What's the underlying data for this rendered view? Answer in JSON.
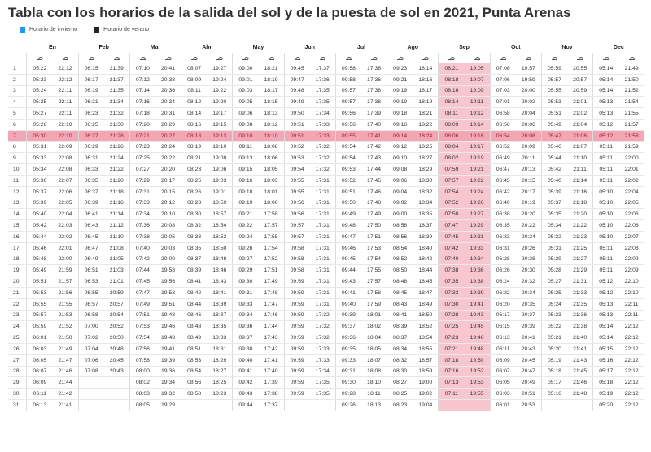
{
  "title": "Tabla con los horarios de la salida del sol y de la puesta de sol en 2021, Punta Arenas",
  "legend": [
    {
      "label": "Horario de invierno",
      "color": "#2196f3"
    },
    {
      "label": "Horario de verano",
      "color": "#222222"
    }
  ],
  "icons": {
    "sunrise": "sunrise-icon",
    "sunset": "sunset-icon"
  },
  "highlight_color": "#f7c6cf",
  "highlight_row_color": "#f3a6b3",
  "highlight_column": "Sep",
  "current_day": 7,
  "months": [
    "En",
    "Feb",
    "Mar",
    "Abr",
    "May",
    "Jun",
    "Jul",
    "Ago",
    "Sep",
    "Oct",
    "Nov",
    "Dec"
  ],
  "rows": [
    [
      "1",
      "05:22",
      "22:12",
      "06:15",
      "21:39",
      "07:10",
      "20:41",
      "08:07",
      "19:27",
      "09:00",
      "18:21",
      "09:45",
      "17:37",
      "09:58",
      "17:36",
      "09:23",
      "18:14",
      "08:21",
      "19:05",
      "07:08",
      "19:57",
      "05:59",
      "20:55",
      "05:14",
      "21:49"
    ],
    [
      "2",
      "05:23",
      "22:12",
      "06:17",
      "21:37",
      "07:12",
      "20:38",
      "08:09",
      "19:24",
      "09:01",
      "18:19",
      "09:47",
      "17:36",
      "09:58",
      "17:36",
      "09:21",
      "18:16",
      "08:18",
      "19:07",
      "07:06",
      "19:59",
      "05:57",
      "20:57",
      "05:14",
      "21:50"
    ],
    [
      "3",
      "05:24",
      "22:11",
      "06:19",
      "21:35",
      "07:14",
      "20:36",
      "08:11",
      "19:22",
      "09:03",
      "18:17",
      "09:48",
      "17:35",
      "09:57",
      "17:38",
      "09:19",
      "18:17",
      "08:16",
      "19:09",
      "07:03",
      "20:00",
      "05:55",
      "20:59",
      "05:14",
      "21:52"
    ],
    [
      "4",
      "05:25",
      "22:11",
      "06:21",
      "21:34",
      "07:16",
      "20:34",
      "08:12",
      "19:20",
      "09:05",
      "18:15",
      "09:49",
      "17:35",
      "09:57",
      "17:38",
      "09:19",
      "18:19",
      "08:14",
      "19:11",
      "07:01",
      "20:02",
      "05:53",
      "21:01",
      "05:13",
      "21:54"
    ],
    [
      "5",
      "05:27",
      "22:11",
      "06:23",
      "21:32",
      "07:18",
      "20:31",
      "08:14",
      "19:17",
      "09:06",
      "18:13",
      "09:50",
      "17:34",
      "09:56",
      "17:39",
      "09:18",
      "18:21",
      "08:11",
      "19:12",
      "06:58",
      "20:04",
      "05:51",
      "21:02",
      "05:13",
      "21:55"
    ],
    [
      "6",
      "05:28",
      "22:10",
      "06:25",
      "21:30",
      "07:20",
      "20:29",
      "08:16",
      "19:15",
      "09:08",
      "18:12",
      "09:51",
      "17:33",
      "09:56",
      "17:40",
      "09:16",
      "18:22",
      "08:09",
      "19:14",
      "06:56",
      "20:06",
      "05:49",
      "21:04",
      "05:12",
      "21:57"
    ],
    [
      "7",
      "05:30",
      "22:10",
      "06:27",
      "21:28",
      "07:21",
      "20:27",
      "08:18",
      "19:13",
      "09:10",
      "18:10",
      "09:51",
      "17:33",
      "09:55",
      "17:41",
      "09:14",
      "18:24",
      "08:06",
      "19:16",
      "06:54",
      "20:08",
      "05:47",
      "21:06",
      "05:12",
      "21:58"
    ],
    [
      "8",
      "05:31",
      "22:09",
      "06:29",
      "21:26",
      "07:23",
      "20:24",
      "08:19",
      "19:10",
      "09:11",
      "18:08",
      "09:52",
      "17:32",
      "09:54",
      "17:42",
      "09:12",
      "18:25",
      "08:04",
      "19:17",
      "06:52",
      "20:09",
      "05:46",
      "21:07",
      "05:11",
      "21:59"
    ],
    [
      "9",
      "05:33",
      "22:08",
      "06:31",
      "21:24",
      "07:25",
      "20:22",
      "08:21",
      "19:08",
      "09:13",
      "18:06",
      "09:53",
      "17:32",
      "09:54",
      "17:43",
      "09:10",
      "18:27",
      "08:02",
      "19:19",
      "06:49",
      "20:11",
      "05:44",
      "21:10",
      "05:11",
      "22:00"
    ],
    [
      "10",
      "05:34",
      "22:08",
      "06:33",
      "21:22",
      "07:27",
      "20:20",
      "08:23",
      "19:06",
      "09:15",
      "18:05",
      "09:54",
      "17:32",
      "09:53",
      "17:44",
      "09:08",
      "18:29",
      "07:59",
      "19:21",
      "06:47",
      "20:13",
      "05:42",
      "21:11",
      "05:11",
      "22:01"
    ],
    [
      "11",
      "05:36",
      "22:07",
      "06:35",
      "21:20",
      "07:29",
      "20:17",
      "08:25",
      "19:03",
      "09:16",
      "18:03",
      "09:55",
      "17:31",
      "09:52",
      "17:45",
      "09:06",
      "18:30",
      "07:57",
      "19:22",
      "06:45",
      "20:15",
      "05:40",
      "21:14",
      "05:11",
      "22:02"
    ],
    [
      "12",
      "05:37",
      "22:06",
      "06:37",
      "21:18",
      "07:31",
      "20:15",
      "08:26",
      "19:01",
      "09:18",
      "18:01",
      "09:55",
      "17:31",
      "09:51",
      "17:46",
      "09:04",
      "18:32",
      "07:54",
      "19:24",
      "06:42",
      "20:17",
      "05:39",
      "21:16",
      "05:10",
      "22:04"
    ],
    [
      "13",
      "05:39",
      "22:05",
      "06:39",
      "21:16",
      "07:33",
      "20:12",
      "08:28",
      "18:59",
      "09:19",
      "18:00",
      "09:56",
      "17:31",
      "09:50",
      "17:48",
      "09:02",
      "18:34",
      "07:52",
      "19:26",
      "06:40",
      "20:19",
      "05:37",
      "21:18",
      "05:10",
      "22:05"
    ],
    [
      "14",
      "05:40",
      "22:04",
      "06:41",
      "21:14",
      "07:34",
      "20:10",
      "08:30",
      "18:57",
      "09:21",
      "17:58",
      "09:56",
      "17:31",
      "09:49",
      "17:49",
      "09:00",
      "18:35",
      "07:50",
      "19:27",
      "06:38",
      "20:20",
      "05:35",
      "21:20",
      "05:10",
      "22:06"
    ],
    [
      "15",
      "05:42",
      "22:03",
      "06:43",
      "21:12",
      "07:36",
      "20:08",
      "08:32",
      "18:54",
      "09:22",
      "17:57",
      "09:57",
      "17:31",
      "09:48",
      "17:50",
      "08:58",
      "18:37",
      "07:47",
      "19:29",
      "06:35",
      "20:22",
      "05:34",
      "21:22",
      "05:10",
      "22:06"
    ],
    [
      "16",
      "05:44",
      "22:02",
      "06:45",
      "21:10",
      "07:38",
      "20:05",
      "08:33",
      "18:52",
      "09:24",
      "17:55",
      "09:57",
      "17:31",
      "09:47",
      "17:51",
      "08:56",
      "18:39",
      "07:45",
      "19:31",
      "06:33",
      "20:24",
      "05:32",
      "21:23",
      "05:10",
      "22:07"
    ],
    [
      "17",
      "05:46",
      "22:01",
      "06:47",
      "21:08",
      "07:40",
      "20:03",
      "08:35",
      "18:50",
      "09:26",
      "17:54",
      "09:58",
      "17:31",
      "09:46",
      "17:53",
      "08:54",
      "18:40",
      "07:42",
      "19:33",
      "06:31",
      "20:26",
      "05:31",
      "21:25",
      "05:11",
      "22:08"
    ],
    [
      "18",
      "05:48",
      "22:00",
      "06:49",
      "21:05",
      "07:42",
      "20:00",
      "08:37",
      "18:48",
      "09:27",
      "17:52",
      "09:58",
      "17:31",
      "09:45",
      "17:54",
      "08:52",
      "18:42",
      "07:40",
      "19:34",
      "06:28",
      "20:28",
      "05:29",
      "21:27",
      "05:11",
      "22:09"
    ],
    [
      "19",
      "05:49",
      "21:59",
      "06:51",
      "21:03",
      "07:44",
      "19:58",
      "08:39",
      "18:46",
      "09:29",
      "17:51",
      "09:58",
      "17:31",
      "09:44",
      "17:55",
      "08:50",
      "18:44",
      "07:38",
      "19:36",
      "06:26",
      "20:30",
      "05:28",
      "21:29",
      "05:11",
      "22:09"
    ],
    [
      "20",
      "05:51",
      "21:57",
      "06:53",
      "21:01",
      "07:45",
      "19:56",
      "08:41",
      "18:43",
      "09:30",
      "17:49",
      "09:59",
      "17:31",
      "09:43",
      "17:57",
      "08:48",
      "18:45",
      "07:35",
      "19:38",
      "06:24",
      "20:32",
      "05:27",
      "21:31",
      "05:12",
      "22:10"
    ],
    [
      "21",
      "05:53",
      "21:56",
      "06:55",
      "20:59",
      "07:47",
      "19:53",
      "08:42",
      "18:41",
      "09:31",
      "17:48",
      "09:59",
      "17:31",
      "09:41",
      "17:58",
      "08:45",
      "18:47",
      "07:33",
      "19:39",
      "06:22",
      "20:34",
      "05:25",
      "21:33",
      "05:12",
      "22:10"
    ],
    [
      "22",
      "05:55",
      "21:55",
      "06:57",
      "20:57",
      "07:49",
      "19:51",
      "08:44",
      "18:39",
      "09:33",
      "17:47",
      "09:59",
      "17:31",
      "09:40",
      "17:59",
      "08:43",
      "18:49",
      "07:30",
      "19:41",
      "06:20",
      "20:35",
      "05:24",
      "21:35",
      "05:13",
      "22:11"
    ],
    [
      "23",
      "05:57",
      "21:53",
      "06:58",
      "20:54",
      "07:51",
      "19:48",
      "08:46",
      "18:37",
      "09:34",
      "17:46",
      "09:59",
      "17:32",
      "09:39",
      "18:01",
      "08:41",
      "18:50",
      "07:28",
      "19:43",
      "06:17",
      "20:37",
      "05:23",
      "21:36",
      "05:13",
      "22:11"
    ],
    [
      "24",
      "05:59",
      "21:52",
      "07:00",
      "20:52",
      "07:53",
      "19:46",
      "08:48",
      "18:35",
      "09:36",
      "17:44",
      "09:59",
      "17:32",
      "09:37",
      "18:02",
      "08:39",
      "18:52",
      "07:25",
      "19:45",
      "06:15",
      "20:39",
      "05:22",
      "21:38",
      "05:14",
      "22:12"
    ],
    [
      "25",
      "06:01",
      "21:50",
      "07:02",
      "20:50",
      "07:54",
      "19:43",
      "08:49",
      "18:33",
      "09:37",
      "17:43",
      "09:59",
      "17:32",
      "09:36",
      "18:04",
      "08:37",
      "18:54",
      "07:23",
      "19:46",
      "06:13",
      "20:41",
      "05:21",
      "21:40",
      "05:14",
      "22:12"
    ],
    [
      "26",
      "06:03",
      "21:49",
      "07:04",
      "20:48",
      "07:56",
      "19:41",
      "08:51",
      "18:31",
      "09:38",
      "17:42",
      "09:59",
      "17:33",
      "09:35",
      "18:05",
      "08:34",
      "18:55",
      "07:21",
      "19:48",
      "06:11",
      "20:43",
      "05:20",
      "21:41",
      "05:15",
      "22:12"
    ],
    [
      "27",
      "06:05",
      "21:47",
      "07:06",
      "20:45",
      "07:58",
      "19:39",
      "08:53",
      "18:29",
      "09:40",
      "17:41",
      "09:59",
      "17:33",
      "09:33",
      "18:07",
      "08:32",
      "18:57",
      "07:18",
      "19:50",
      "06:09",
      "20:45",
      "05:19",
      "21:43",
      "05:16",
      "22:12"
    ],
    [
      "28",
      "06:07",
      "21:46",
      "07:08",
      "20:43",
      "08:00",
      "19:36",
      "08:54",
      "18:27",
      "09:41",
      "17:40",
      "09:59",
      "17:34",
      "09:31",
      "18:08",
      "08:30",
      "18:59",
      "07:16",
      "19:52",
      "06:07",
      "20:47",
      "05:18",
      "21:45",
      "05:17",
      "22:12"
    ],
    [
      "29",
      "06:09",
      "21:44",
      "",
      "",
      "08:02",
      "19:34",
      "08:56",
      "18:25",
      "09:42",
      "17:39",
      "09:59",
      "17:35",
      "09:30",
      "18:10",
      "08:27",
      "19:00",
      "07:13",
      "19:53",
      "06:05",
      "20:49",
      "05:17",
      "21:46",
      "05:18",
      "22:12"
    ],
    [
      "30",
      "06:11",
      "21:42",
      "",
      "",
      "08:03",
      "19:32",
      "08:58",
      "18:23",
      "09:43",
      "17:38",
      "09:59",
      "17:35",
      "09:28",
      "18:11",
      "08:25",
      "19:02",
      "07:11",
      "19:55",
      "06:03",
      "20:51",
      "05:16",
      "21:48",
      "05:19",
      "22:12"
    ],
    [
      "31",
      "06:13",
      "21:41",
      "",
      "",
      "08:05",
      "19:29",
      "",
      "",
      "09:44",
      "17:37",
      "",
      "",
      "09:26",
      "18:13",
      "08:23",
      "19:04",
      "",
      "",
      "06:01",
      "20:53",
      "",
      "",
      "05:20",
      "22:12"
    ]
  ]
}
